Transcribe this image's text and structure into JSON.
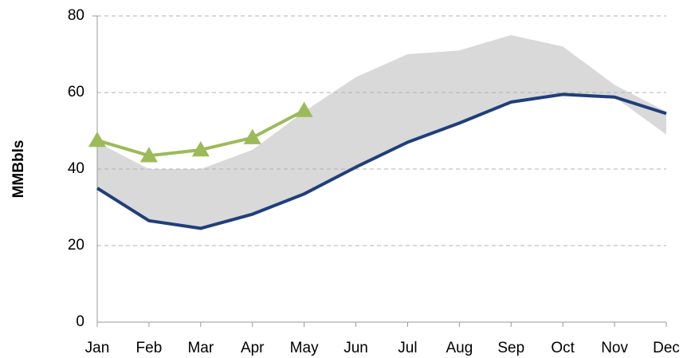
{
  "chart_data": {
    "type": "line",
    "y_label": "MMBbls",
    "categories": [
      "Jan",
      "Feb",
      "Mar",
      "Apr",
      "May",
      "Jun",
      "Jul",
      "Aug",
      "Sep",
      "Oct",
      "Nov",
      "Dec"
    ],
    "range": {
      "color": "#d9d9d9",
      "low": [
        35,
        26.5,
        24.5,
        28.2,
        33.5,
        40.5,
        47,
        52,
        57.5,
        59.5,
        58.8,
        49
      ],
      "high": [
        47,
        40,
        40,
        45,
        55,
        64,
        70,
        71,
        75,
        72,
        62,
        55
      ]
    },
    "series": [
      {
        "color": "#1f3f7a",
        "values": [
          35,
          26.5,
          24.5,
          28.2,
          33.5,
          40.5,
          47,
          52,
          57.5,
          59.5,
          58.8,
          54.5
        ]
      },
      {
        "color": "#9bbb59",
        "marker": "triangle",
        "values": [
          47.5,
          43.5,
          45,
          48.2,
          55.3,
          null,
          null,
          null,
          null,
          null,
          null,
          null
        ]
      }
    ],
    "ylim": [
      0,
      80
    ],
    "yticks": [
      0,
      20,
      40,
      60,
      80
    ],
    "grid": true
  }
}
